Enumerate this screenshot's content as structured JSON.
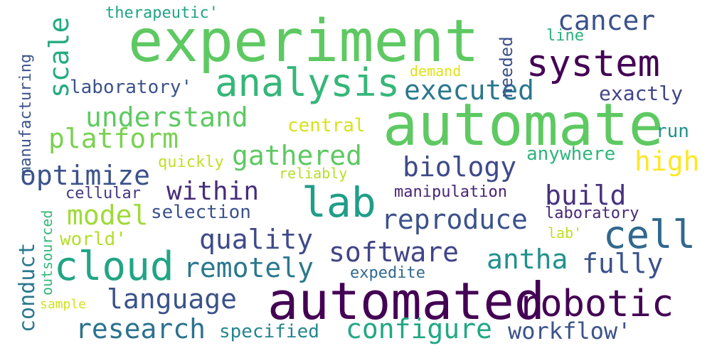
{
  "words": [
    {
      "text": "experiment",
      "color": "#5ec962",
      "rot": 0
    },
    {
      "text": "automate",
      "color": "#5ec962",
      "rot": 0
    },
    {
      "text": "automated",
      "color": "#440154",
      "rot": 0
    },
    {
      "text": "system",
      "color": "#440154",
      "rot": 0
    },
    {
      "text": "robotic",
      "color": "#440154",
      "rot": 0
    },
    {
      "text": "analysis",
      "color": "#35b779",
      "rot": 0
    },
    {
      "text": "cell",
      "color": "#31688e",
      "rot": 0
    },
    {
      "text": "cloud",
      "color": "#21a585",
      "rot": 0
    },
    {
      "text": "lab",
      "color": "#1f9e89",
      "rot": 0
    },
    {
      "text": "cancer",
      "color": "#3b528b",
      "rot": 0
    },
    {
      "text": "executed",
      "color": "#2a788e",
      "rot": 0
    },
    {
      "text": "platform",
      "color": "#7ad151",
      "rot": 0
    },
    {
      "text": "understand",
      "color": "#5ec962",
      "rot": 0
    },
    {
      "text": "gathered",
      "color": "#5ec962",
      "rot": 0
    },
    {
      "text": "biology",
      "color": "#3e4a89",
      "rot": 0
    },
    {
      "text": "high",
      "color": "#fde725",
      "rot": 0
    },
    {
      "text": "optimize",
      "color": "#3b528b",
      "rot": 0
    },
    {
      "text": "build",
      "color": "#46327e",
      "rot": 0
    },
    {
      "text": "within",
      "color": "#472d7b",
      "rot": 0
    },
    {
      "text": "reproduce",
      "color": "#3b528b",
      "rot": 0
    },
    {
      "text": "model",
      "color": "#a0da39",
      "rot": 0
    },
    {
      "text": "quality",
      "color": "#3e4a89",
      "rot": 0
    },
    {
      "text": "software",
      "color": "#414487",
      "rot": 0
    },
    {
      "text": "antha",
      "color": "#21918c",
      "rot": 0
    },
    {
      "text": "fully",
      "color": "#3b528b",
      "rot": 0
    },
    {
      "text": "remotely",
      "color": "#2a788e",
      "rot": 0
    },
    {
      "text": "language",
      "color": "#3b528b",
      "rot": 0
    },
    {
      "text": "research",
      "color": "#2c728e",
      "rot": 0
    },
    {
      "text": "configure",
      "color": "#22a884",
      "rot": 0
    },
    {
      "text": "workflow'",
      "color": "#3b528b",
      "rot": 0
    },
    {
      "text": "specified",
      "color": "#25858e",
      "rot": 0
    },
    {
      "text": "laboratory'",
      "color": "#3b528b",
      "rot": 0
    },
    {
      "text": "exactly",
      "color": "#414487",
      "rot": 0
    },
    {
      "text": "central",
      "color": "#d8e219",
      "rot": 0
    },
    {
      "text": "run",
      "color": "#21918c",
      "rot": 0
    },
    {
      "text": "anywhere",
      "color": "#2fb47c",
      "rot": 0
    },
    {
      "text": "quickly",
      "color": "#c2df23",
      "rot": 0
    },
    {
      "text": "reliably",
      "color": "#b5de2b",
      "rot": 0
    },
    {
      "text": "cellular",
      "color": "#453781",
      "rot": 0
    },
    {
      "text": "manipulation",
      "color": "#482475",
      "rot": 0
    },
    {
      "text": "selection",
      "color": "#3b528b",
      "rot": 0
    },
    {
      "text": "laboratory",
      "color": "#482878",
      "rot": 0
    },
    {
      "text": "world'",
      "color": "#b5de2b",
      "rot": 0
    },
    {
      "text": "lab'",
      "color": "#bddf26",
      "rot": 0
    },
    {
      "text": "expedite",
      "color": "#31688e",
      "rot": 0
    },
    {
      "text": "sample",
      "color": "#d2e21b",
      "rot": 0
    },
    {
      "text": "therapeutic'",
      "color": "#20a386",
      "rot": 0
    },
    {
      "text": "demand",
      "color": "#dde318",
      "rot": 0
    },
    {
      "text": "line",
      "color": "#2ab07f",
      "rot": 0
    },
    {
      "text": "needed",
      "color": "#3b528b",
      "rot": 90
    },
    {
      "text": "scale",
      "color": "#25ab82",
      "rot": 90
    },
    {
      "text": "manufacturing",
      "color": "#3b528b",
      "rot": 90
    },
    {
      "text": "conduct",
      "color": "#2a788e",
      "rot": 90
    },
    {
      "text": "outsourced",
      "color": "#35b779",
      "rot": 90
    }
  ]
}
